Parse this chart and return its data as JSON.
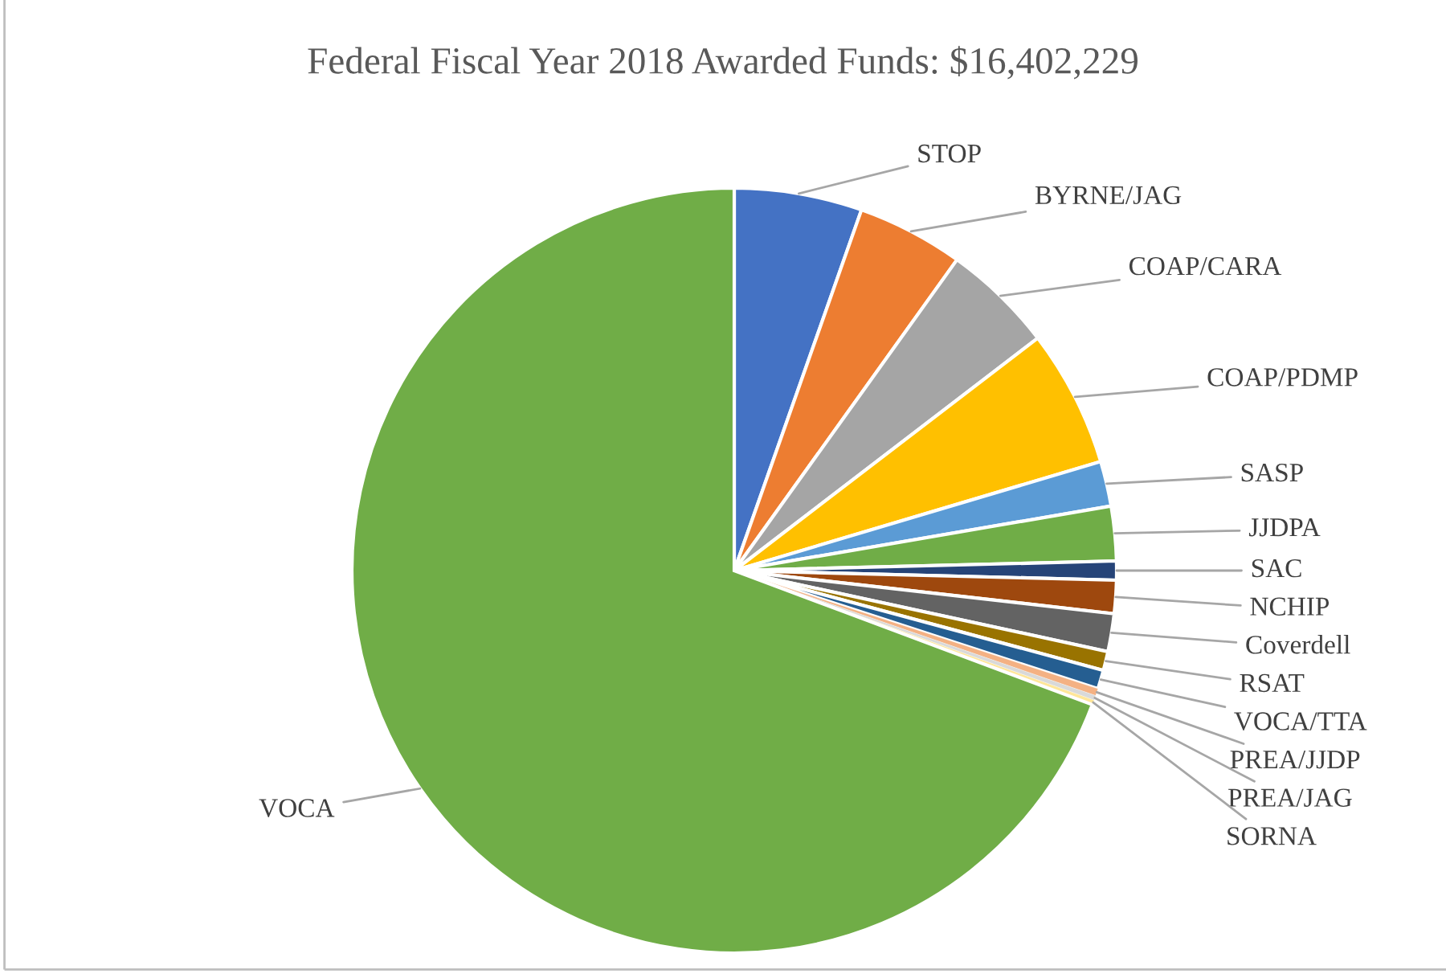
{
  "chart_data": {
    "type": "pie",
    "title": "Federal Fiscal Year 2018 Awarded Funds: $16,402,229",
    "categories": [
      "STOP",
      "BYRNE/JAG",
      "COAP/CARA",
      "COAP/PDMP",
      "SASP",
      "JJDPA",
      "SAC",
      "NCHIP",
      "Coverdell",
      "RSAT",
      "VOCA/TTA",
      "PREA/JJDP",
      "PREA/JAG",
      "SORNA",
      "VOCA"
    ],
    "values": [
      5.4,
      4.5,
      4.7,
      5.8,
      1.9,
      2.3,
      0.8,
      1.4,
      1.6,
      0.8,
      0.8,
      0.3,
      0.2,
      0.2,
      69.3
    ],
    "colors": [
      "#4472c4",
      "#ed7d31",
      "#a5a5a5",
      "#ffc000",
      "#5b9bd5",
      "#70ad47",
      "#264478",
      "#9e480e",
      "#636363",
      "#997300",
      "#255e91",
      "#f4b183",
      "#d9d9d9",
      "#ffe699",
      "#70ad47"
    ],
    "legend": false
  }
}
